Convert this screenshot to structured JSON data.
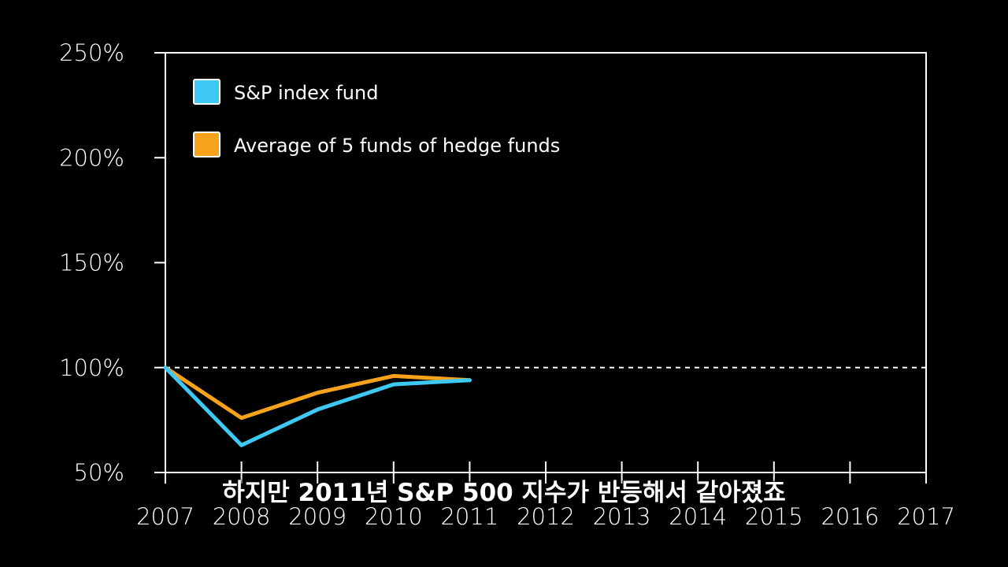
{
  "chart_data": {
    "type": "line",
    "x": [
      2007,
      2008,
      2009,
      2010,
      2011
    ],
    "x_ticks": [
      "2007",
      "2008",
      "2009",
      "2010",
      "2011",
      "2012",
      "2013",
      "2014",
      "2015",
      "2016",
      "2017"
    ],
    "xlim": [
      2007,
      2017
    ],
    "y_ticks": [
      "250%",
      "200%",
      "150%",
      "100%",
      "50%"
    ],
    "y_tick_values": [
      250,
      200,
      150,
      100,
      50
    ],
    "ylim": [
      50,
      250
    ],
    "reference_line": {
      "y": 100,
      "style": "dashed"
    },
    "series": [
      {
        "name": "S&P index fund",
        "color": "#3ec8f4",
        "values": [
          100,
          63,
          80,
          92,
          94
        ]
      },
      {
        "name": "Average of 5 funds of hedge funds",
        "color": "#f7a21b",
        "values": [
          100,
          76,
          88,
          96,
          94
        ]
      }
    ],
    "legend_position": "top-left"
  },
  "subtitle": "하지만 2011년 S&P 500 지수가 반등해서 같아졌죠"
}
